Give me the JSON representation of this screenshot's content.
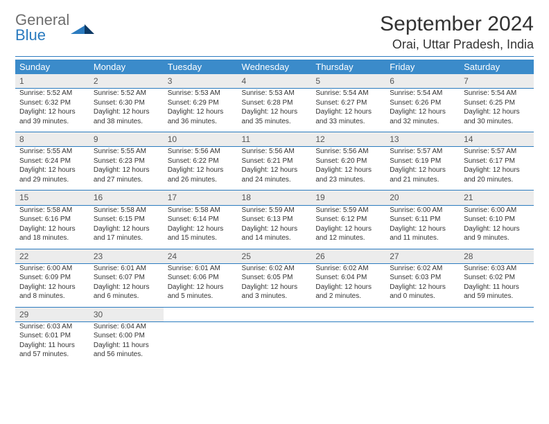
{
  "brand": {
    "word1": "General",
    "word2": "Blue"
  },
  "title": "September 2024",
  "location": "Orai, Uttar Pradesh, India",
  "colors": {
    "header_bg": "#3b8bca",
    "header_text": "#ffffff",
    "rule": "#2b7bbf",
    "daynum_bg": "#ececec",
    "text": "#333333"
  },
  "weekdays": [
    "Sunday",
    "Monday",
    "Tuesday",
    "Wednesday",
    "Thursday",
    "Friday",
    "Saturday"
  ],
  "layout": {
    "weeks": 5,
    "cols": 7
  },
  "days": [
    {
      "n": "1",
      "sr": "Sunrise: 5:52 AM",
      "ss": "Sunset: 6:32 PM",
      "d1": "Daylight: 12 hours",
      "d2": "and 39 minutes."
    },
    {
      "n": "2",
      "sr": "Sunrise: 5:52 AM",
      "ss": "Sunset: 6:30 PM",
      "d1": "Daylight: 12 hours",
      "d2": "and 38 minutes."
    },
    {
      "n": "3",
      "sr": "Sunrise: 5:53 AM",
      "ss": "Sunset: 6:29 PM",
      "d1": "Daylight: 12 hours",
      "d2": "and 36 minutes."
    },
    {
      "n": "4",
      "sr": "Sunrise: 5:53 AM",
      "ss": "Sunset: 6:28 PM",
      "d1": "Daylight: 12 hours",
      "d2": "and 35 minutes."
    },
    {
      "n": "5",
      "sr": "Sunrise: 5:54 AM",
      "ss": "Sunset: 6:27 PM",
      "d1": "Daylight: 12 hours",
      "d2": "and 33 minutes."
    },
    {
      "n": "6",
      "sr": "Sunrise: 5:54 AM",
      "ss": "Sunset: 6:26 PM",
      "d1": "Daylight: 12 hours",
      "d2": "and 32 minutes."
    },
    {
      "n": "7",
      "sr": "Sunrise: 5:54 AM",
      "ss": "Sunset: 6:25 PM",
      "d1": "Daylight: 12 hours",
      "d2": "and 30 minutes."
    },
    {
      "n": "8",
      "sr": "Sunrise: 5:55 AM",
      "ss": "Sunset: 6:24 PM",
      "d1": "Daylight: 12 hours",
      "d2": "and 29 minutes."
    },
    {
      "n": "9",
      "sr": "Sunrise: 5:55 AM",
      "ss": "Sunset: 6:23 PM",
      "d1": "Daylight: 12 hours",
      "d2": "and 27 minutes."
    },
    {
      "n": "10",
      "sr": "Sunrise: 5:56 AM",
      "ss": "Sunset: 6:22 PM",
      "d1": "Daylight: 12 hours",
      "d2": "and 26 minutes."
    },
    {
      "n": "11",
      "sr": "Sunrise: 5:56 AM",
      "ss": "Sunset: 6:21 PM",
      "d1": "Daylight: 12 hours",
      "d2": "and 24 minutes."
    },
    {
      "n": "12",
      "sr": "Sunrise: 5:56 AM",
      "ss": "Sunset: 6:20 PM",
      "d1": "Daylight: 12 hours",
      "d2": "and 23 minutes."
    },
    {
      "n": "13",
      "sr": "Sunrise: 5:57 AM",
      "ss": "Sunset: 6:19 PM",
      "d1": "Daylight: 12 hours",
      "d2": "and 21 minutes."
    },
    {
      "n": "14",
      "sr": "Sunrise: 5:57 AM",
      "ss": "Sunset: 6:17 PM",
      "d1": "Daylight: 12 hours",
      "d2": "and 20 minutes."
    },
    {
      "n": "15",
      "sr": "Sunrise: 5:58 AM",
      "ss": "Sunset: 6:16 PM",
      "d1": "Daylight: 12 hours",
      "d2": "and 18 minutes."
    },
    {
      "n": "16",
      "sr": "Sunrise: 5:58 AM",
      "ss": "Sunset: 6:15 PM",
      "d1": "Daylight: 12 hours",
      "d2": "and 17 minutes."
    },
    {
      "n": "17",
      "sr": "Sunrise: 5:58 AM",
      "ss": "Sunset: 6:14 PM",
      "d1": "Daylight: 12 hours",
      "d2": "and 15 minutes."
    },
    {
      "n": "18",
      "sr": "Sunrise: 5:59 AM",
      "ss": "Sunset: 6:13 PM",
      "d1": "Daylight: 12 hours",
      "d2": "and 14 minutes."
    },
    {
      "n": "19",
      "sr": "Sunrise: 5:59 AM",
      "ss": "Sunset: 6:12 PM",
      "d1": "Daylight: 12 hours",
      "d2": "and 12 minutes."
    },
    {
      "n": "20",
      "sr": "Sunrise: 6:00 AM",
      "ss": "Sunset: 6:11 PM",
      "d1": "Daylight: 12 hours",
      "d2": "and 11 minutes."
    },
    {
      "n": "21",
      "sr": "Sunrise: 6:00 AM",
      "ss": "Sunset: 6:10 PM",
      "d1": "Daylight: 12 hours",
      "d2": "and 9 minutes."
    },
    {
      "n": "22",
      "sr": "Sunrise: 6:00 AM",
      "ss": "Sunset: 6:09 PM",
      "d1": "Daylight: 12 hours",
      "d2": "and 8 minutes."
    },
    {
      "n": "23",
      "sr": "Sunrise: 6:01 AM",
      "ss": "Sunset: 6:07 PM",
      "d1": "Daylight: 12 hours",
      "d2": "and 6 minutes."
    },
    {
      "n": "24",
      "sr": "Sunrise: 6:01 AM",
      "ss": "Sunset: 6:06 PM",
      "d1": "Daylight: 12 hours",
      "d2": "and 5 minutes."
    },
    {
      "n": "25",
      "sr": "Sunrise: 6:02 AM",
      "ss": "Sunset: 6:05 PM",
      "d1": "Daylight: 12 hours",
      "d2": "and 3 minutes."
    },
    {
      "n": "26",
      "sr": "Sunrise: 6:02 AM",
      "ss": "Sunset: 6:04 PM",
      "d1": "Daylight: 12 hours",
      "d2": "and 2 minutes."
    },
    {
      "n": "27",
      "sr": "Sunrise: 6:02 AM",
      "ss": "Sunset: 6:03 PM",
      "d1": "Daylight: 12 hours",
      "d2": "and 0 minutes."
    },
    {
      "n": "28",
      "sr": "Sunrise: 6:03 AM",
      "ss": "Sunset: 6:02 PM",
      "d1": "Daylight: 11 hours",
      "d2": "and 59 minutes."
    },
    {
      "n": "29",
      "sr": "Sunrise: 6:03 AM",
      "ss": "Sunset: 6:01 PM",
      "d1": "Daylight: 11 hours",
      "d2": "and 57 minutes."
    },
    {
      "n": "30",
      "sr": "Sunrise: 6:04 AM",
      "ss": "Sunset: 6:00 PM",
      "d1": "Daylight: 11 hours",
      "d2": "and 56 minutes."
    }
  ]
}
